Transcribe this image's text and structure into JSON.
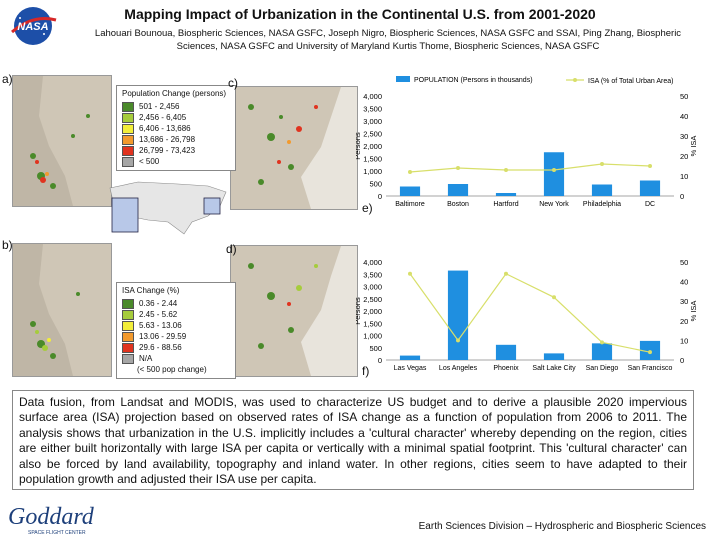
{
  "header": {
    "title": "Mapping Impact of Urbanization in the Continental U.S. from 2001-2020",
    "authors": "Lahouari Bounoua, Biospheric Sciences, NASA GSFC, Joseph Nigro, Biospheric Sciences, NASA GSFC and SSAI, Ping Zhang, Biospheric Sciences, NASA GSFC and University of Maryland Kurtis Thome, Biospheric Sciences, NASA GSFC"
  },
  "logos": {
    "nasa": "NASA",
    "goddard": "Goddard",
    "goddard_sub": "SPACE FLIGHT CENTER"
  },
  "panel_labels": {
    "a": "a)",
    "b": "b)",
    "c": "c)",
    "d": "d)",
    "e": "e)",
    "f": "f)"
  },
  "legend_a": {
    "title": "Population Change (persons)",
    "items": [
      {
        "label": "501 - 2,456",
        "color": "#4a8a2a"
      },
      {
        "label": "2,456 - 6,405",
        "color": "#a6cc3c"
      },
      {
        "label": "6,406 - 13,686",
        "color": "#f2ee3a"
      },
      {
        "label": "13,686 - 26,798",
        "color": "#f29a2e"
      },
      {
        "label": "26,799 - 73,423",
        "color": "#e0331f"
      },
      {
        "label": "< 500",
        "color": "#a6a6a6"
      }
    ]
  },
  "legend_b": {
    "title": "ISA Change (%)",
    "items": [
      {
        "label": "0.36 - 2.44",
        "color": "#4a8a2a"
      },
      {
        "label": "2.45 - 5.62",
        "color": "#a6cc3c"
      },
      {
        "label": "5.63 - 13.06",
        "color": "#f2ee3a"
      },
      {
        "label": "13.06 - 29.59",
        "color": "#f29a2e"
      },
      {
        "label": "29.6 - 88.56",
        "color": "#e0331f"
      },
      {
        "label": "N/A",
        "color": "#a6a6a6"
      },
      {
        "label": "(< 500 pop change)",
        "color": ""
      }
    ]
  },
  "chart_data": [
    {
      "id": "e",
      "type": "bar",
      "legend_bar": "POPULATION (Persons in thousands)",
      "legend_line": "ISA (% of Total Urban Area)",
      "ylabel_left": "Persons",
      "ylabel_right": "% ISA",
      "categories": [
        "Baltimore",
        "Boston",
        "Hartford",
        "New York",
        "Philadelphia",
        "DC"
      ],
      "left_ticks": [
        "4,000",
        "3,500",
        "3,000",
        "2,500",
        "2,000",
        "1,500",
        "1,000",
        "500",
        "0"
      ],
      "right_ticks": [
        "50",
        "40",
        "30",
        "20",
        "10",
        "0"
      ],
      "ylim_left": [
        0,
        4000
      ],
      "ylim_right": [
        0,
        50
      ],
      "bars": [
        380,
        480,
        120,
        1750,
        460,
        620
      ],
      "line": [
        12,
        14,
        13,
        13,
        16,
        15
      ],
      "bar_color": "#1f8fe0",
      "line_color": "#d8df6a"
    },
    {
      "id": "f",
      "type": "bar",
      "legend_bar": "",
      "legend_line": "",
      "ylabel_left": "Persons",
      "ylabel_right": "% ISA",
      "categories": [
        "Las Vegas",
        "Los Angeles",
        "Phoenix",
        "Salt Lake City",
        "San Diego",
        "San Francisco"
      ],
      "left_ticks": [
        "4,000",
        "3,500",
        "3,000",
        "2,500",
        "2,000",
        "1,500",
        "1,000",
        "500",
        "0"
      ],
      "right_ticks": [
        "50",
        "40",
        "30",
        "20",
        "10",
        "0"
      ],
      "ylim_left": [
        0,
        4000
      ],
      "ylim_right": [
        0,
        50
      ],
      "bars": [
        180,
        3650,
        620,
        270,
        680,
        780
      ],
      "line": [
        44,
        10,
        44,
        32,
        9,
        4
      ],
      "bar_color": "#1f8fe0",
      "line_color": "#d8df6a"
    }
  ],
  "body_text": "Data fusion, from Landsat and MODIS, was used to characterize US budget and to derive a plausible 2020 impervious surface area (ISA) projection based on observed rates of ISA change as a function of population from 2006 to 2011. The analysis shows that urbanization in the U.S. implicitly includes a 'cultural character' whereby depending on the region, cities are either built horizontally with large ISA per capita or vertically with a minimal spatial footprint. This 'cultural character' can also be forced by land availability, topography and inland water. In other regions, cities seem to have adapted to their population growth and adjusted their ISA use per capita.",
  "footer": "Earth Sciences Division – Hydrospheric and Biospheric Sciences"
}
